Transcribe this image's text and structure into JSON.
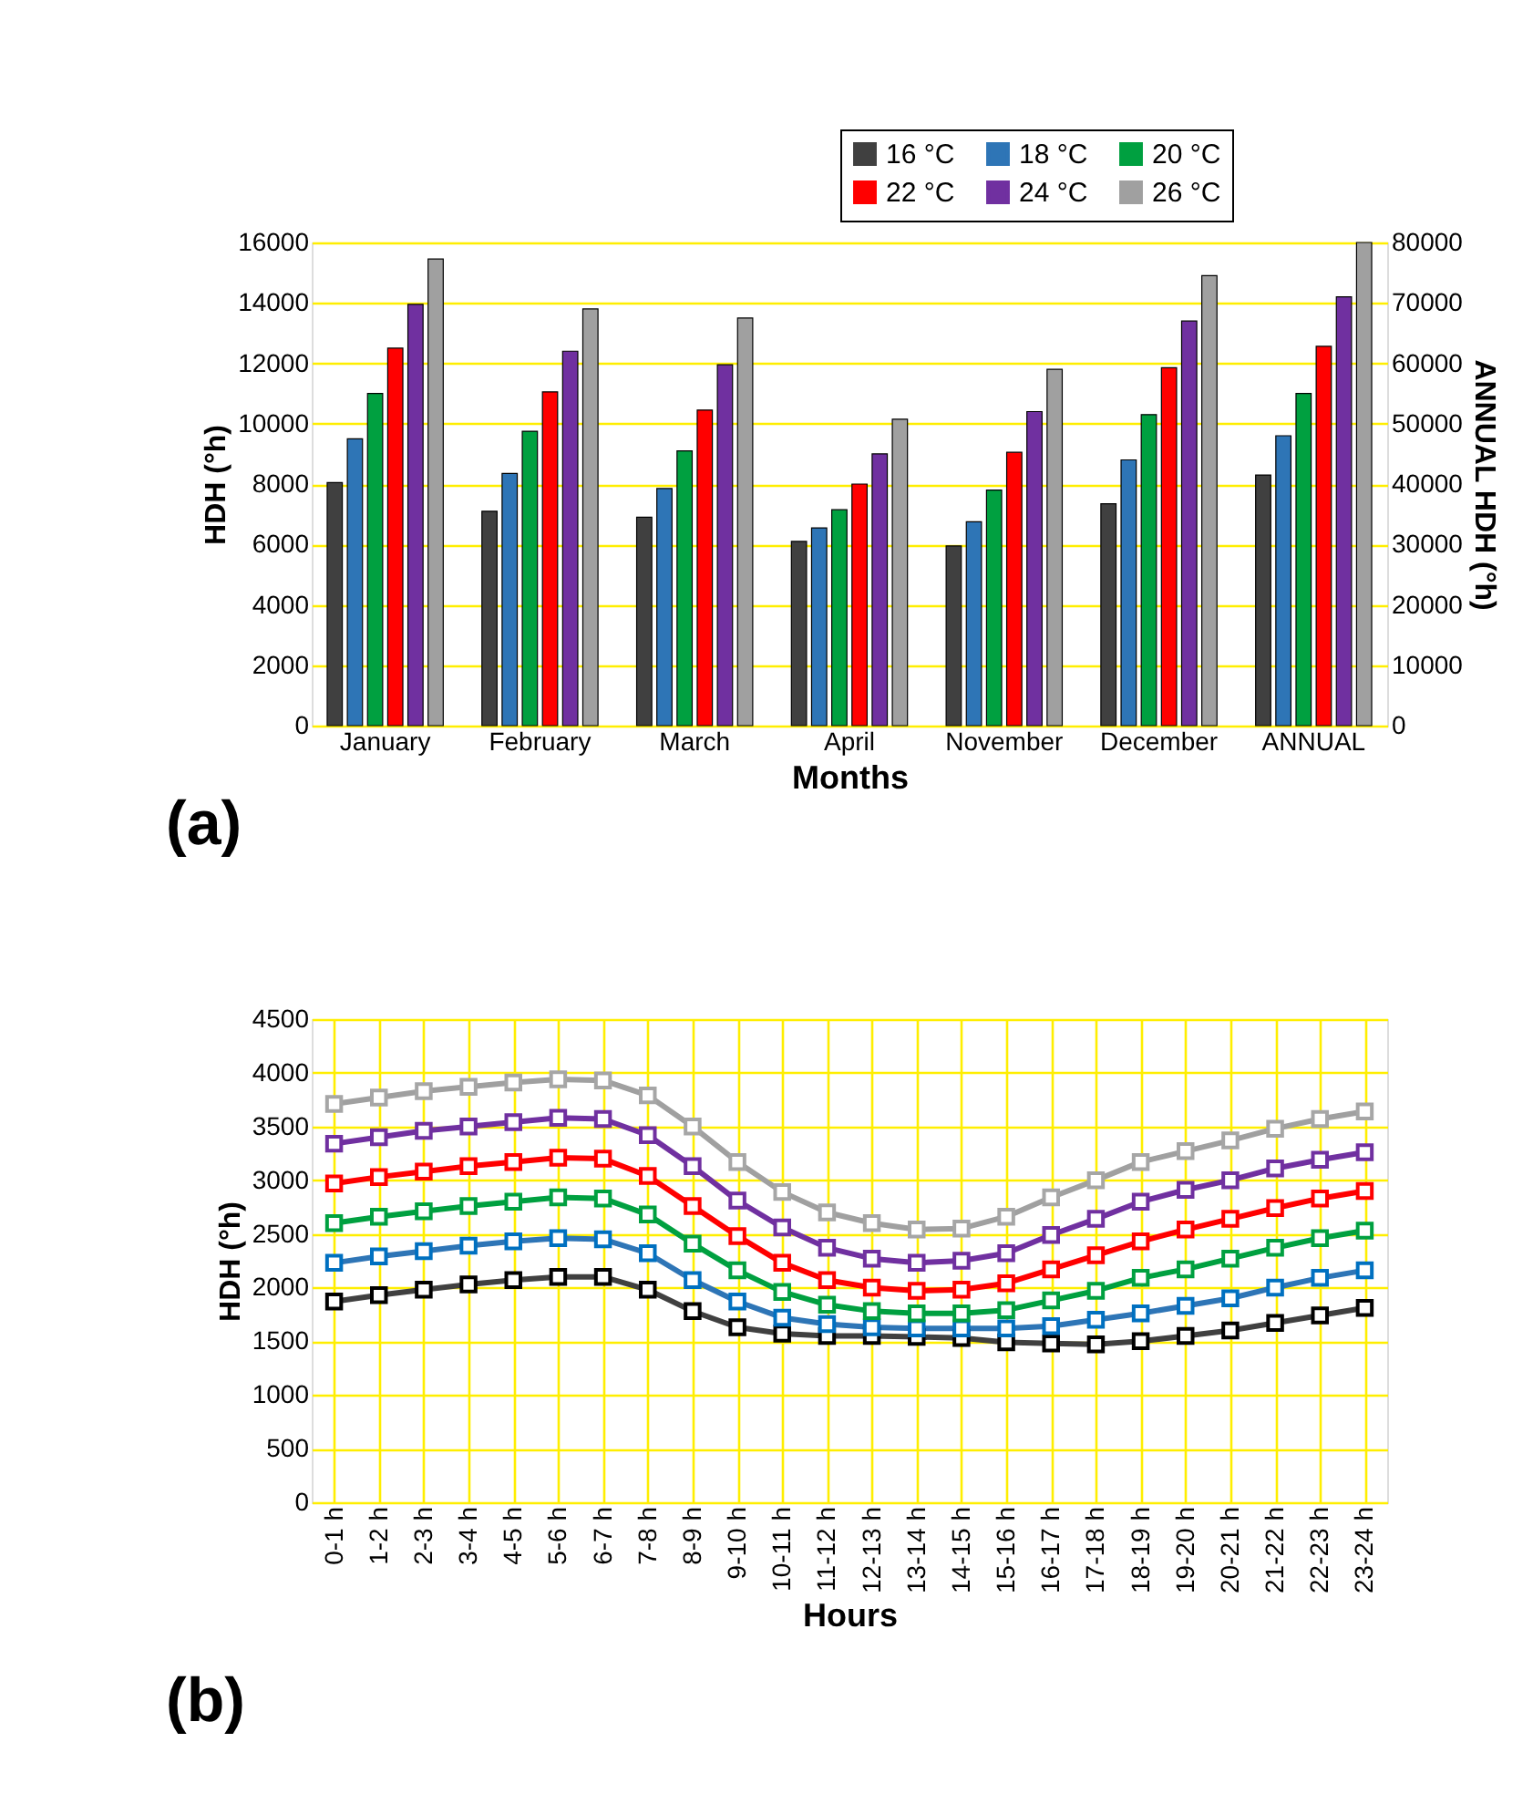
{
  "chart_data": [
    {
      "type": "bar",
      "xlabel": "Months",
      "ylabel": "HDH (°h)",
      "y2label": "ANNUAL HDH (°h)",
      "categories": [
        "January",
        "February",
        "March",
        "April",
        "November",
        "December",
        "ANNUAL"
      ],
      "series": [
        {
          "name": "16 °C",
          "color": "#404040",
          "values": [
            8050,
            7100,
            6900,
            6100,
            5950,
            7350,
            null
          ]
        },
        {
          "name": "18 °C",
          "color": "#2e75b6",
          "values": [
            9500,
            8350,
            7850,
            6550,
            6750,
            8800,
            null
          ]
        },
        {
          "name": "20 °C",
          "color": "#00a040",
          "values": [
            11000,
            9750,
            9100,
            7150,
            7800,
            10300,
            null
          ]
        },
        {
          "name": "22 °C",
          "color": "#ff0000",
          "values": [
            12500,
            11050,
            10450,
            8000,
            9050,
            11850,
            null
          ]
        },
        {
          "name": "24 °C",
          "color": "#7030a0",
          "values": [
            13950,
            12400,
            11950,
            9000,
            10400,
            13400,
            null
          ]
        },
        {
          "name": "26 °C",
          "color": "#a0a0a0",
          "values": [
            15450,
            13800,
            13500,
            10150,
            11800,
            14900,
            null
          ]
        },
        {
          "color": "#404040",
          "axis": "y2",
          "values": [
            null,
            null,
            null,
            null,
            null,
            null,
            41500
          ]
        },
        {
          "color": "#2e75b6",
          "axis": "y2",
          "values": [
            null,
            null,
            null,
            null,
            null,
            null,
            48000
          ]
        },
        {
          "color": "#00a040",
          "axis": "y2",
          "values": [
            null,
            null,
            null,
            null,
            null,
            null,
            55000
          ]
        },
        {
          "color": "#ff0000",
          "axis": "y2",
          "values": [
            null,
            null,
            null,
            null,
            null,
            null,
            62800
          ]
        },
        {
          "color": "#7030a0",
          "axis": "y2",
          "values": [
            null,
            null,
            null,
            null,
            null,
            null,
            71000
          ]
        },
        {
          "color": "#a0a0a0",
          "axis": "y2",
          "values": [
            null,
            null,
            null,
            null,
            null,
            null,
            80000
          ]
        }
      ],
      "ylim": [
        0,
        16000
      ],
      "yticks": [
        0,
        2000,
        4000,
        6000,
        8000,
        10000,
        12000,
        14000,
        16000
      ],
      "y2lim": [
        0,
        80000
      ],
      "y2ticks": [
        0,
        10000,
        20000,
        30000,
        40000,
        50000,
        60000,
        70000,
        80000
      ],
      "grid": "y",
      "legend": "top right",
      "annotations": [
        "(a)"
      ]
    },
    {
      "type": "line",
      "xlabel": "Hours",
      "ylabel": "HDH (°h)",
      "marker": "square",
      "line_style": "solid",
      "categories": [
        "0-1 h",
        "1-2 h",
        "2-3 h",
        "3-4 h",
        "4-5 h",
        "5-6 h",
        "6-7 h",
        "7-8 h",
        "8-9 h",
        "9-10 h",
        "10-11 h",
        "11-12 h",
        "12-13 h",
        "13-14 h",
        "14-15 h",
        "15-16 h",
        "16-17 h",
        "17-18 h",
        "18-19 h",
        "19-20 h",
        "20-21 h",
        "21-22 h",
        "22-23 h",
        "23-24 h"
      ],
      "series": [
        {
          "name": "16 °C",
          "color": "#000000",
          "values": [
            1870,
            1930,
            1980,
            2030,
            2070,
            2100,
            2100,
            1980,
            1780,
            1630,
            1570,
            1550,
            1550,
            1540,
            1530,
            1490,
            1480,
            1470,
            1500,
            1550,
            1600,
            1670,
            1740,
            1810
          ]
        },
        {
          "name": "18 °C",
          "color": "#0070c0",
          "values": [
            2230,
            2290,
            2340,
            2390,
            2430,
            2460,
            2450,
            2320,
            2070,
            1870,
            1720,
            1660,
            1630,
            1620,
            1620,
            1620,
            1640,
            1700,
            1760,
            1830,
            1900,
            2000,
            2090,
            2160
          ]
        },
        {
          "name": "20 °C",
          "color": "#00a040",
          "values": [
            2600,
            2660,
            2710,
            2760,
            2800,
            2840,
            2830,
            2680,
            2410,
            2160,
            1960,
            1840,
            1780,
            1760,
            1760,
            1790,
            1880,
            1970,
            2090,
            2170,
            2270,
            2370,
            2460,
            2530
          ]
        },
        {
          "name": "22 °C",
          "color": "#ff0000",
          "values": [
            2970,
            3030,
            3080,
            3130,
            3170,
            3210,
            3200,
            3040,
            2760,
            2480,
            2230,
            2070,
            2000,
            1970,
            1980,
            2040,
            2170,
            2300,
            2430,
            2540,
            2640,
            2740,
            2830,
            2900
          ]
        },
        {
          "name": "24 °C",
          "color": "#7030a0",
          "values": [
            3340,
            3400,
            3460,
            3500,
            3540,
            3580,
            3570,
            3420,
            3130,
            2810,
            2560,
            2370,
            2270,
            2230,
            2250,
            2320,
            2490,
            2640,
            2800,
            2910,
            3000,
            3110,
            3190,
            3260
          ]
        },
        {
          "name": "26 °C",
          "color": "#a6a6a6",
          "values": [
            3710,
            3770,
            3830,
            3870,
            3910,
            3940,
            3930,
            3790,
            3500,
            3170,
            2890,
            2700,
            2600,
            2540,
            2550,
            2660,
            2840,
            3000,
            3170,
            3270,
            3370,
            3480,
            3570,
            3640
          ]
        }
      ],
      "ylim": [
        0,
        4500
      ],
      "yticks": [
        0,
        500,
        1000,
        1500,
        2000,
        2500,
        3000,
        3500,
        4000,
        4500
      ],
      "grid": true,
      "legend": "top right",
      "annotations": [
        "(b)"
      ]
    }
  ]
}
